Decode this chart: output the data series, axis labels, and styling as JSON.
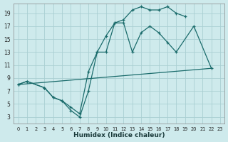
{
  "xlabel": "Humidex (Indice chaleur)",
  "background_color": "#ceeaec",
  "grid_color": "#aacfd2",
  "line_color": "#1a6b6b",
  "xlim": [
    -0.5,
    23.5
  ],
  "ylim": [
    2.0,
    20.5
  ],
  "xticks": [
    0,
    1,
    2,
    3,
    4,
    5,
    6,
    7,
    8,
    9,
    10,
    11,
    12,
    13,
    14,
    15,
    16,
    17,
    18,
    19,
    20,
    21,
    22,
    23
  ],
  "yticks": [
    3,
    5,
    7,
    9,
    11,
    13,
    15,
    17,
    19
  ],
  "curve1_x": [
    0,
    1,
    3,
    4,
    5,
    6,
    7,
    8,
    9,
    10,
    11,
    12,
    13,
    14,
    15,
    16,
    17,
    18,
    19
  ],
  "curve1_y": [
    8,
    8.5,
    7.5,
    6,
    5.5,
    4.5,
    3.5,
    10,
    13,
    15.5,
    17.5,
    18,
    19.5,
    20,
    19.5,
    19.5,
    20,
    19,
    18.5
  ],
  "curve2_x": [
    0,
    1,
    3,
    4,
    5,
    6,
    7,
    8,
    9,
    10,
    11,
    12,
    13,
    14,
    15,
    16,
    17,
    18,
    20,
    22
  ],
  "curve2_y": [
    8,
    8.5,
    7.5,
    6,
    5.5,
    4,
    3,
    7,
    13,
    13,
    17.5,
    17.5,
    13,
    16,
    17,
    16,
    14.5,
    13,
    17,
    10.5
  ],
  "curve3_x": [
    0,
    22
  ],
  "curve3_y": [
    8,
    10.5
  ],
  "lw": 0.9,
  "ms": 3.5
}
